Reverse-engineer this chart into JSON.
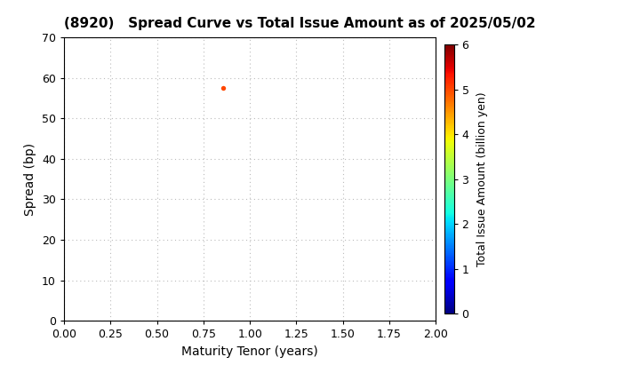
{
  "title": "(8920)   Spread Curve vs Total Issue Amount as of 2025/05/02",
  "xlabel": "Maturity Tenor (years)",
  "ylabel": "Spread (bp)",
  "colorbar_label": "Total Issue Amount (billion yen)",
  "xlim": [
    0.0,
    2.0
  ],
  "ylim": [
    0,
    70
  ],
  "xticks": [
    0.0,
    0.25,
    0.5,
    0.75,
    1.0,
    1.25,
    1.5,
    1.75,
    2.0
  ],
  "yticks": [
    0,
    10,
    20,
    30,
    40,
    50,
    60,
    70
  ],
  "colorbar_ticks": [
    0,
    1,
    2,
    3,
    4,
    5,
    6
  ],
  "colorbar_min": 0,
  "colorbar_max": 6,
  "scatter_x": [
    0.854
  ],
  "scatter_y": [
    57.5
  ],
  "scatter_color_value": [
    5.0
  ],
  "scatter_size": 15,
  "colormap": "jet",
  "background_color": "#ffffff",
  "grid_color": "#bbbbbb",
  "title_fontsize": 11,
  "axis_label_fontsize": 10,
  "tick_fontsize": 9,
  "colorbar_fontsize": 9,
  "colorbar_tick_fontsize": 9
}
